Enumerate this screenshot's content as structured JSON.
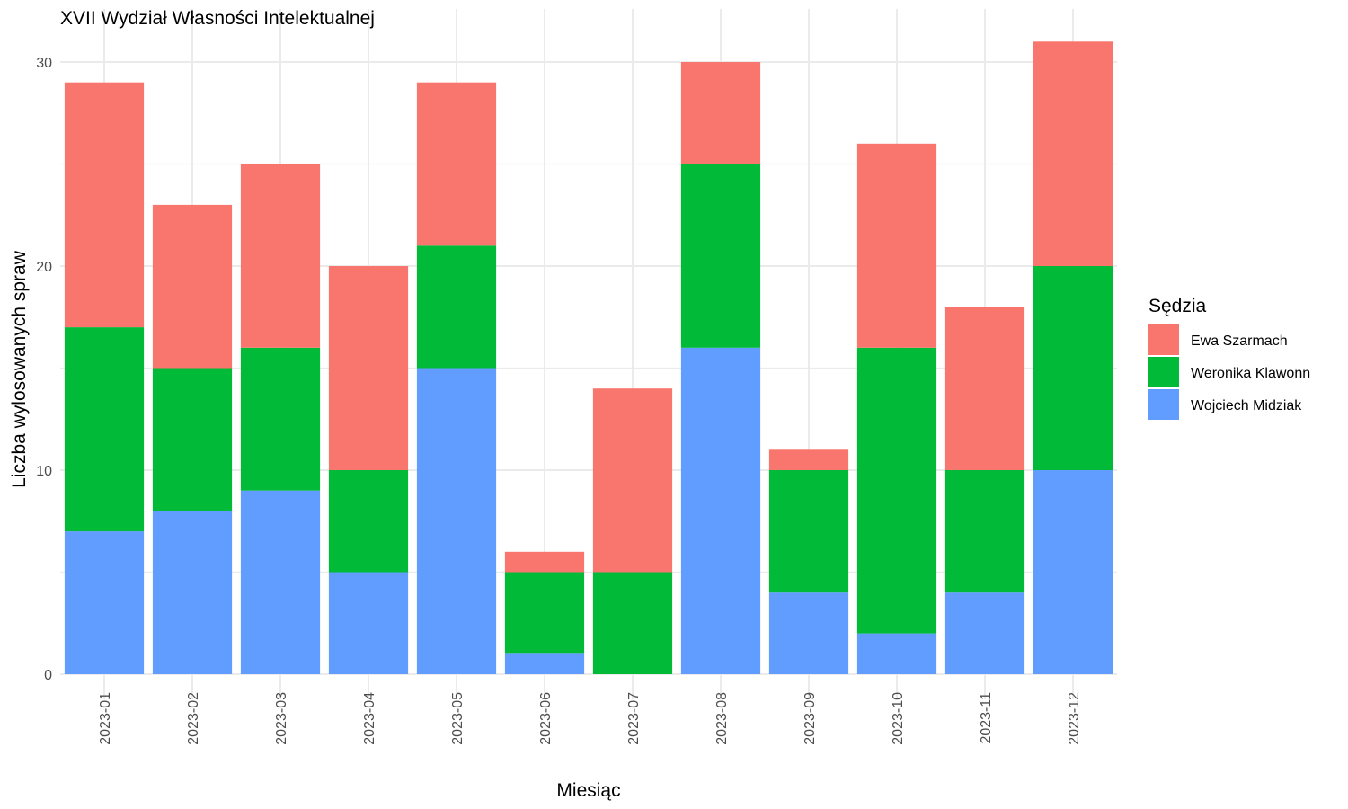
{
  "chart_data": {
    "type": "bar",
    "stacked": true,
    "title": "XVII Wydział Własności Intelektualnej",
    "xlabel": "Miesiąc",
    "ylabel": "Liczba wylosowanych spraw",
    "ylim": [
      0,
      32
    ],
    "yticks": [
      0,
      10,
      20,
      30
    ],
    "grid": true,
    "legend_title": "Sędzia",
    "legend_position": "right",
    "categories": [
      "2023-01",
      "2023-02",
      "2023-03",
      "2023-04",
      "2023-05",
      "2023-06",
      "2023-07",
      "2023-08",
      "2023-09",
      "2023-10",
      "2023-11",
      "2023-12"
    ],
    "series": [
      {
        "name": "Wojciech Midziak",
        "color": "#619cff",
        "values": [
          7,
          8,
          9,
          5,
          15,
          1,
          0,
          16,
          4,
          2,
          4,
          10
        ]
      },
      {
        "name": "Weronika Klawonn",
        "color": "#00ba38",
        "values": [
          10,
          7,
          7,
          5,
          6,
          4,
          5,
          9,
          6,
          14,
          6,
          10
        ]
      },
      {
        "name": "Ewa Szarmach",
        "color": "#f8766d",
        "values": [
          12,
          8,
          9,
          10,
          8,
          1,
          9,
          5,
          1,
          10,
          8,
          11
        ]
      }
    ],
    "legend_order": [
      "Ewa Szarmach",
      "Weronika Klawonn",
      "Wojciech Midziak"
    ]
  }
}
